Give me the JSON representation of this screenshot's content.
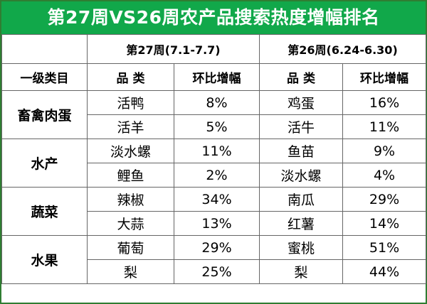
{
  "title": "第27周VS26周农产品搜索热度增幅排名",
  "week27_header": "第27周(7.1-7.7)",
  "week26_header": "第26周(6.24-6.30)",
  "col_category": "一级类目",
  "col_product": "品 类",
  "col_change": "环比增幅",
  "groups": [
    {
      "category": "畜禽肉蛋",
      "rows": [
        {
          "w27_product": "活鸭",
          "w27_change": "8%",
          "w26_product": "鸡蛋",
          "w26_change": "16%"
        },
        {
          "w27_product": "活羊",
          "w27_change": "5%",
          "w26_product": "活牛",
          "w26_change": "11%"
        }
      ]
    },
    {
      "category": "水产",
      "rows": [
        {
          "w27_product": "淡水螺",
          "w27_change": "11%",
          "w26_product": "鱼苗",
          "w26_change": "9%"
        },
        {
          "w27_product": "鲤鱼",
          "w27_change": "2%",
          "w26_product": "淡水螺",
          "w26_change": "4%"
        }
      ]
    },
    {
      "category": "蔬菜",
      "rows": [
        {
          "w27_product": "辣椒",
          "w27_change": "34%",
          "w26_product": "南瓜",
          "w26_change": "29%"
        },
        {
          "w27_product": "大蒜",
          "w27_change": "13%",
          "w26_product": "红薯",
          "w26_change": "14%"
        }
      ]
    },
    {
      "category": "水果",
      "rows": [
        {
          "w27_product": "葡萄",
          "w27_change": "29%",
          "w26_product": "蜜桃",
          "w26_change": "51%"
        },
        {
          "w27_product": "梨",
          "w27_change": "25%",
          "w26_product": "梨",
          "w26_change": "44%"
        }
      ]
    }
  ],
  "colors": {
    "title_bg": "#11a84a",
    "border": "#2f7d32",
    "grid": "#666666"
  }
}
